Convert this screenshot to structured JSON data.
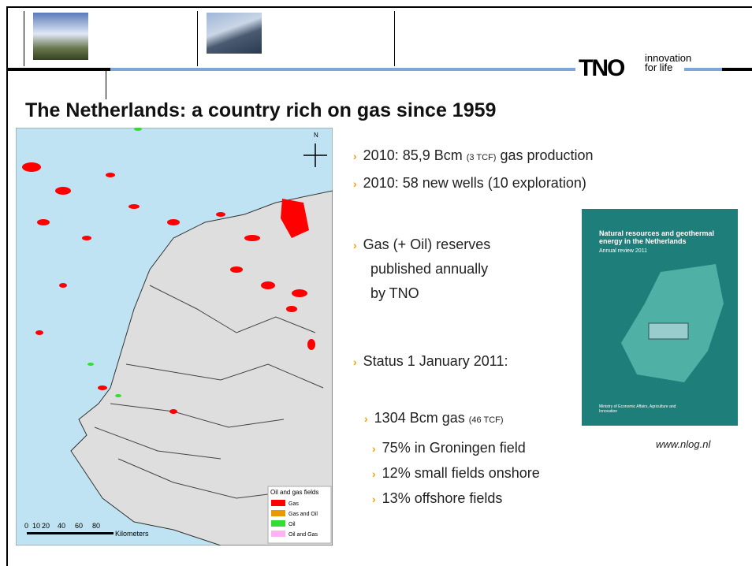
{
  "header": {
    "logo": "TNO",
    "tagline": [
      "innovation",
      "for life"
    ]
  },
  "title": "The Netherlands: a country rich on gas since 1959",
  "map": {
    "north": "N",
    "legend": {
      "title": "Oil and gas fields",
      "items": [
        {
          "label": "Gas",
          "color": "#ff0000"
        },
        {
          "label": "Gas and Oil",
          "color": "#e69a00"
        },
        {
          "label": "Oil",
          "color": "#33dd33"
        },
        {
          "label": "Oil and Gas",
          "color": "#ffb3f0"
        }
      ]
    },
    "scale": {
      "ticks": [
        "0",
        "10",
        "20",
        "40",
        "60",
        "80"
      ],
      "unit": "Kilometers"
    }
  },
  "bullets": [
    {
      "level": 1,
      "parts": [
        "2010:  85,9 Bcm ",
        "(3 TCF)",
        " gas production"
      ]
    },
    {
      "level": 1,
      "parts": [
        "2010:  58 new wells (10 exploration)"
      ]
    },
    {
      "level": 1,
      "parts": [
        "Gas (+ Oil) reserves"
      ],
      "cont": [
        "published annually",
        "by TNO"
      ]
    },
    {
      "level": 1,
      "parts": [
        "Status 1 January 2011:"
      ]
    },
    {
      "level": 2,
      "parts": [
        "1304 Bcm gas ",
        "(46 TCF)"
      ]
    },
    {
      "level": 3,
      "parts": [
        "75% in Groningen field"
      ]
    },
    {
      "level": 3,
      "parts": [
        "12% small fields onshore"
      ]
    },
    {
      "level": 3,
      "parts": [
        "13% offshore fields"
      ]
    }
  ],
  "cover": {
    "title": "Natural resources and geothermal energy in the Netherlands",
    "subtitle": "Annual review 2011",
    "ministry": "Ministry of Economic Affairs, Agriculture and Innovation"
  },
  "link": "www.nlog.nl"
}
